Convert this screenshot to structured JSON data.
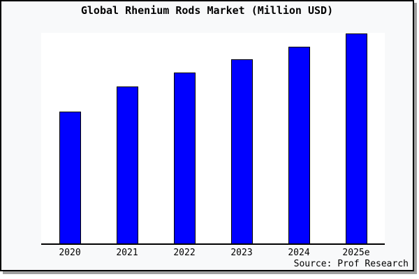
{
  "window": {
    "title": "Global Rhenium Rods Market (Million USD)"
  },
  "source_note": "Source: Prof Research",
  "colors": {
    "bar_fill": "#0000ff",
    "bar_border": "#000000",
    "chart_background": "#f8f9fa",
    "plot_background": "#ffffff",
    "axis_line": "#000000",
    "frame_border": "#000000",
    "frame_shadow": "#9e9e9e",
    "text": "#000000"
  },
  "chart_data": {
    "type": "bar",
    "title": "Global Rhenium Rods Market (Million USD)",
    "categories": [
      "2020",
      "2021",
      "2022",
      "2023",
      "2024",
      "2025e"
    ],
    "values": [
      63,
      75,
      81.5,
      87.7,
      93.8,
      100
    ],
    "xlabel": "",
    "ylabel": "",
    "ylim": [
      0,
      101
    ],
    "grid": false,
    "legend": false,
    "y_axis_ticks_shown": false,
    "note": "No y-axis scale is shown in the image; values are relative bar heights indexed to 2025e = 100."
  }
}
